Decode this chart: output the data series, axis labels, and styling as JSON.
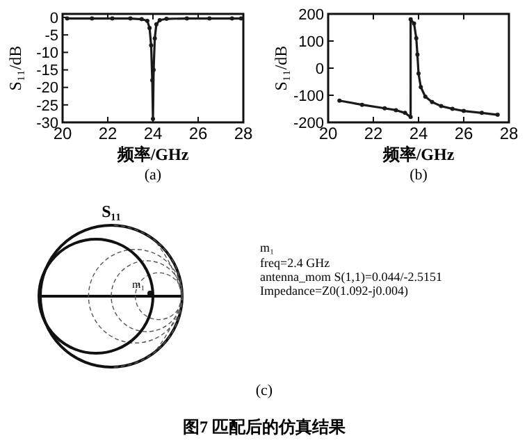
{
  "chart_data": [
    {
      "type": "line",
      "xlabel": "频率/GHz",
      "ylabel": "S₁₁/dB",
      "annotations": [
        "(a)"
      ],
      "xlim": [
        20,
        28
      ],
      "ylim": [
        -30,
        1
      ],
      "xticks": [
        20,
        22,
        24,
        26,
        28
      ],
      "yticks": [
        0,
        -5,
        -10,
        -15,
        -20,
        -25,
        -30
      ],
      "grid": false,
      "marker": "circle",
      "line_style": "solid",
      "series": [
        {
          "color": "#1a1a1a",
          "x": [
            20.2,
            21.3,
            22.2,
            23.0,
            23.5,
            23.75,
            23.85,
            23.92,
            23.97,
            24.0,
            24.03,
            24.08,
            24.15,
            24.3,
            24.6,
            25.5,
            26.5,
            27.5,
            27.9
          ],
          "values": [
            -0.3,
            -0.3,
            -0.3,
            -0.3,
            -0.5,
            -1,
            -3,
            -8,
            -18,
            -29,
            -15,
            -6,
            -2,
            -0.8,
            -0.4,
            -0.3,
            -0.3,
            -0.3,
            -0.3
          ]
        }
      ]
    },
    {
      "type": "line",
      "xlabel": "频率/GHz",
      "ylabel": "S₁₁/dB",
      "annotations": [
        "(b)"
      ],
      "xlim": [
        20,
        28
      ],
      "ylim": [
        -200,
        200
      ],
      "xticks": [
        20,
        22,
        24,
        26,
        28
      ],
      "yticks": [
        200,
        100,
        0,
        -100,
        -200
      ],
      "grid": false,
      "marker": "circle",
      "line_style": "solid",
      "series": [
        {
          "color": "#1a1a1a",
          "x": [
            20.5,
            21.5,
            22.5,
            23.0,
            23.4,
            23.65,
            23.65,
            23.8,
            23.9,
            23.95,
            24.0,
            24.1,
            24.3,
            24.6,
            25.0,
            25.5,
            26.0,
            26.8,
            27.5
          ],
          "values": [
            -120,
            -135,
            -148,
            -155,
            -165,
            -180,
            180,
            165,
            110,
            50,
            -20,
            -70,
            -105,
            -125,
            -140,
            -150,
            -158,
            -165,
            -172
          ]
        }
      ]
    },
    {
      "type": "other",
      "title": "S₁₁",
      "annotations": [
        "m₁",
        "m₁",
        "freq=2.4 GHz",
        "antenna_mom S(1,1)=0.044/-2.5151",
        "Impedance=Z0(1.092-j0.004)",
        "(c)",
        "图7    匹配后的仿真结果"
      ]
    }
  ]
}
